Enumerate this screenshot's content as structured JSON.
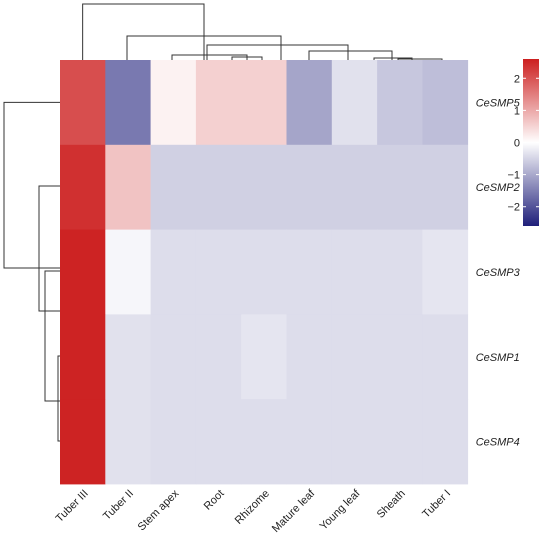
{
  "chart_data": {
    "type": "heatmap",
    "columns": [
      "Tuber III",
      "Tuber II",
      "Stem apex",
      "Root",
      "Rhizome",
      "Mature leaf",
      "Young leaf",
      "Sheath",
      "Tuber I"
    ],
    "rows": [
      "CeSMP5",
      "CeSMP2",
      "CeSMP3",
      "CeSMP1",
      "CeSMP4"
    ],
    "values": [
      [
        2.05,
        -1.55,
        0.15,
        0.55,
        0.55,
        -1.05,
        -0.35,
        -0.65,
        -0.75
      ],
      [
        2.4,
        0.7,
        -0.55,
        -0.55,
        -0.55,
        -0.55,
        -0.55,
        -0.55,
        -0.55
      ],
      [
        2.55,
        -0.1,
        -0.4,
        -0.4,
        -0.4,
        -0.4,
        -0.4,
        -0.4,
        -0.3
      ],
      [
        2.55,
        -0.35,
        -0.4,
        -0.4,
        -0.3,
        -0.4,
        -0.4,
        -0.4,
        -0.4
      ],
      [
        2.55,
        -0.35,
        -0.4,
        -0.4,
        -0.4,
        -0.4,
        -0.4,
        -0.4,
        -0.4
      ]
    ],
    "color_scale": {
      "min": -2.6,
      "max": 2.6,
      "low_color": "#1f1f7a",
      "mid_color": "#ffffff",
      "high_color": "#cc1f1f",
      "ticks": [
        {
          "value": 2,
          "label": "2"
        },
        {
          "value": 1,
          "label": "1"
        },
        {
          "value": 0,
          "label": "0"
        },
        {
          "value": -1,
          "label": "−1"
        },
        {
          "value": -2,
          "label": "−2"
        }
      ]
    },
    "column_dendrogram": true,
    "row_dendrogram": true
  }
}
